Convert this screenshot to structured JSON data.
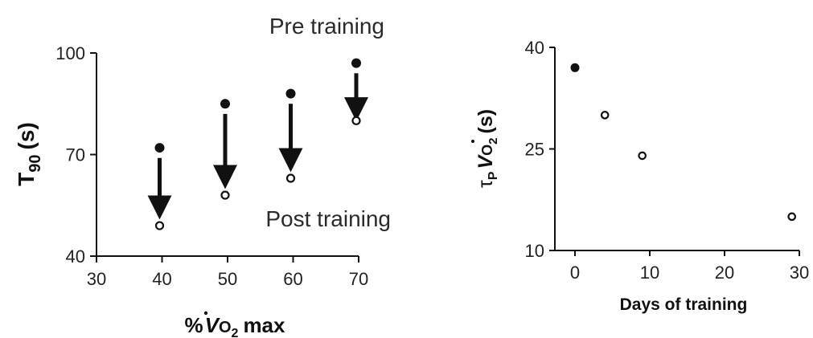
{
  "chart_data": [
    {
      "type": "scatter",
      "xlabel": {
        "prefix": "%",
        "var": "V",
        "sub": "O",
        "subscript": "2",
        "suffix": "max"
      },
      "ylabel": {
        "main": "T",
        "subscript": "90",
        "unit": "(s)"
      },
      "xlim": [
        30,
        70
      ],
      "ylim": [
        40,
        100
      ],
      "x_ticks": [
        "30",
        "40",
        "50",
        "60",
        "70"
      ],
      "y_ticks": [
        "40",
        "70",
        "100"
      ],
      "annotations": [
        "Pre training",
        "Post training"
      ],
      "series": [
        {
          "name": "Pre training",
          "marker": "filled",
          "x": [
            40,
            50,
            60,
            70
          ],
          "y": [
            72,
            85,
            88,
            97
          ]
        },
        {
          "name": "Post training",
          "marker": "open",
          "x": [
            40,
            50,
            60,
            70
          ],
          "y": [
            49,
            58,
            63,
            80
          ]
        }
      ],
      "arrows": [
        {
          "x": 40,
          "from": 69,
          "to": 52
        },
        {
          "x": 50,
          "from": 82,
          "to": 61
        },
        {
          "x": 60,
          "from": 85,
          "to": 66
        },
        {
          "x": 70,
          "from": 94,
          "to": 81
        }
      ]
    },
    {
      "type": "scatter",
      "xlabel": "Days of training",
      "ylabel": {
        "greek": "τ",
        "subscript_p": "P",
        "var": "V",
        "sub": "O",
        "subscript": "2",
        "unit": "(s)"
      },
      "xlim": [
        0,
        30
      ],
      "ylim": [
        10,
        40
      ],
      "x_ticks": [
        "0",
        "10",
        "20",
        "30"
      ],
      "y_ticks": [
        "10",
        "25",
        "40"
      ],
      "series": [
        {
          "filled": [
            true,
            false,
            false,
            false
          ],
          "x": [
            0,
            4,
            9,
            29
          ],
          "y": [
            37,
            30,
            24,
            15
          ]
        }
      ]
    }
  ]
}
